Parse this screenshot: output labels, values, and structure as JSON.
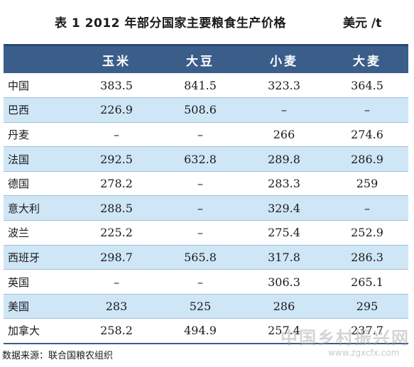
{
  "title": "表 1  2012 年部分国家主要粮食生产价格",
  "unit": "美元 /t",
  "table": {
    "headers": [
      "",
      "玉米",
      "大豆",
      "小麦",
      "大麦"
    ],
    "rows": [
      {
        "country": "中国",
        "corn": "383.5",
        "soybean": "841.5",
        "wheat": "323.3",
        "barley": "364.5"
      },
      {
        "country": "巴西",
        "corn": "226.9",
        "soybean": "508.6",
        "wheat": "–",
        "barley": "–"
      },
      {
        "country": "丹麦",
        "corn": "–",
        "soybean": "–",
        "wheat": "266",
        "barley": "274.6"
      },
      {
        "country": "法国",
        "corn": "292.5",
        "soybean": "632.8",
        "wheat": "289.8",
        "barley": "286.9"
      },
      {
        "country": "德国",
        "corn": "278.2",
        "soybean": "–",
        "wheat": "283.3",
        "barley": "259"
      },
      {
        "country": "意大利",
        "corn": "288.5",
        "soybean": "–",
        "wheat": "329.4",
        "barley": "–"
      },
      {
        "country": "波兰",
        "corn": "225.2",
        "soybean": "–",
        "wheat": "275.4",
        "barley": "252.9"
      },
      {
        "country": "西班牙",
        "corn": "298.7",
        "soybean": "565.8",
        "wheat": "317.8",
        "barley": "286.3"
      },
      {
        "country": "英国",
        "corn": "–",
        "soybean": "–",
        "wheat": "306.3",
        "barley": "265.1"
      },
      {
        "country": "美国",
        "corn": "283",
        "soybean": "525",
        "wheat": "286",
        "barley": "295"
      },
      {
        "country": "加拿大",
        "corn": "258.2",
        "soybean": "494.9",
        "wheat": "257.4",
        "barley": "237.7"
      }
    ]
  },
  "source": "数据来源：联合国粮农组织",
  "watermark": {
    "text": "中国乡村振兴网",
    "url": "www.zgxcfx.com"
  },
  "colors": {
    "header_bg": "#3a5d8a",
    "stripe_bg": "#cfe6f7"
  }
}
